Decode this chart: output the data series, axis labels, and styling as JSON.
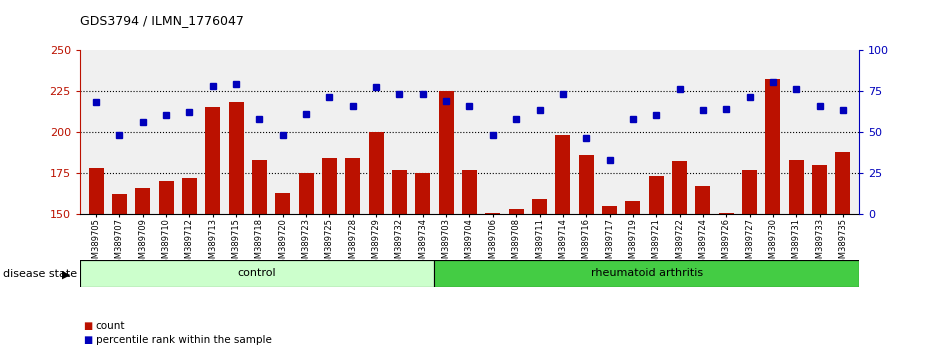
{
  "title": "GDS3794 / ILMN_1776047",
  "categories": [
    "GSM389705",
    "GSM389707",
    "GSM389709",
    "GSM389710",
    "GSM389712",
    "GSM389713",
    "GSM389715",
    "GSM389718",
    "GSM389720",
    "GSM389723",
    "GSM389725",
    "GSM389728",
    "GSM389729",
    "GSM389732",
    "GSM389734",
    "GSM389703",
    "GSM389704",
    "GSM389706",
    "GSM389708",
    "GSM389711",
    "GSM389714",
    "GSM389716",
    "GSM389717",
    "GSM389719",
    "GSM389721",
    "GSM389722",
    "GSM389724",
    "GSM389726",
    "GSM389727",
    "GSM389730",
    "GSM389731",
    "GSM389733",
    "GSM389735"
  ],
  "counts": [
    178,
    162,
    166,
    170,
    172,
    215,
    218,
    183,
    163,
    175,
    184,
    184,
    200,
    177,
    175,
    225,
    177,
    151,
    153,
    159,
    198,
    186,
    155,
    158,
    173,
    182,
    167,
    151,
    177,
    232,
    183,
    180,
    188
  ],
  "percentiles_right": [
    68,
    48,
    56,
    60,
    62,
    78,
    79,
    58,
    48,
    61,
    71,
    66,
    77,
    73,
    73,
    69,
    66,
    48,
    58,
    63,
    73,
    46,
    33,
    58,
    60,
    76,
    63,
    64,
    71,
    80,
    76,
    66,
    63
  ],
  "n_control": 15,
  "n_ra": 18,
  "ylim_left": [
    150,
    250
  ],
  "ylim_right": [
    0,
    100
  ],
  "yticks_left": [
    150,
    175,
    200,
    225,
    250
  ],
  "yticks_right": [
    0,
    25,
    50,
    75,
    100
  ],
  "bar_color": "#bb1100",
  "dot_color": "#0000bb",
  "control_color": "#ccffcc",
  "ra_color": "#44cc44",
  "control_label": "control",
  "ra_label": "rheumatoid arthritis",
  "disease_state_label": "disease state",
  "legend_count": "count",
  "legend_percentile": "percentile rank within the sample",
  "background_color": "#d8d8d8",
  "plot_bg": "#f0f0f0"
}
